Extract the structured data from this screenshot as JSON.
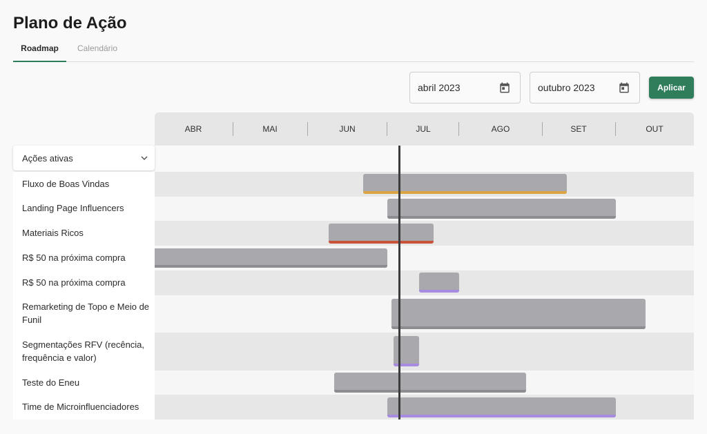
{
  "header": {
    "title": "Plano de Ação"
  },
  "tabs": [
    {
      "label": "Roadmap",
      "active": true
    },
    {
      "label": "Calendário",
      "active": false
    }
  ],
  "filters": {
    "start_date": "abril 2023",
    "end_date": "outubro 2023",
    "apply_label": "Aplicar",
    "calendar_icon": "calendar-icon"
  },
  "timeline": {
    "months": [
      "ABR",
      "MAI",
      "JUN",
      "JUL",
      "AGO",
      "SET",
      "OUT"
    ]
  },
  "action_filter": {
    "label": "Ações ativas",
    "icon": "chevron-down-icon"
  },
  "actions": [
    {
      "label": "Fluxo de Boas Vindas",
      "stripe_color": "#d9a441"
    },
    {
      "label": "Landing Page Influencers",
      "stripe_color": "#8d8d91"
    },
    {
      "label": "Materiais Ricos",
      "stripe_color": "#c9523a"
    },
    {
      "label": "R$ 50 na próxima compra",
      "stripe_color": "#8d8d91"
    },
    {
      "label": "R$ 50 na próxima compra",
      "stripe_color": "#a78be0"
    },
    {
      "label": "Remarketing de Topo e Meio de Funil",
      "stripe_color": "#8d8d91"
    },
    {
      "label": "Segmentações RFV (recência, frequência e valor)",
      "stripe_color": "#a78be0"
    },
    {
      "label": "Teste do Eneu",
      "stripe_color": "#8d8d91"
    },
    {
      "label": "Time de Microinfluenciadores",
      "stripe_color": "#a78be0"
    }
  ],
  "colors": {
    "accent": "#2f7d5b",
    "bar": "#a9a9ad",
    "today_marker": "#3c3c3f"
  }
}
